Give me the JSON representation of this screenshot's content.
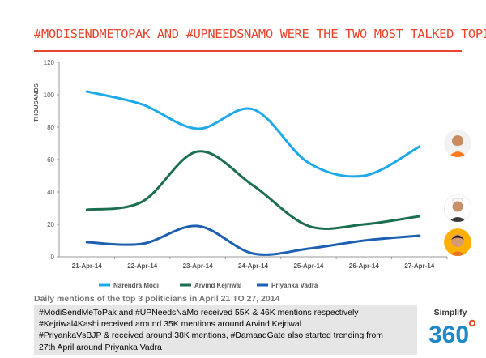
{
  "title": "#MODISENDMETOPAK AND #UPNEEDSNAMO WERE THE TWO MOST TALKED TOPICS",
  "caption": "Daily mentions of the top 3 politicians in April 21 TO 27, 2014",
  "notes": [
    "#ModiSendMeToPak and #UPNeedsNaMo received 55K & 46K mentions respectively",
    "#Kejriwal4Kashi received around 35K mentions around Arvind Kejriwal",
    "#PriyankaVsBJP & received around 38K mentions, #DamaadGate also started trending from",
    "27th April around Priyanka Vadra"
  ],
  "logo": {
    "text": "Simplify",
    "number": "360"
  },
  "colors": {
    "title": "#e8452c",
    "modi": "#1ea9e8",
    "kejriwal": "#1b6e4f",
    "vadra": "#1d5fb0"
  },
  "avatars": [
    "modi-photo",
    "kejriwal-photo",
    "vadra-photo"
  ],
  "chart_data": {
    "type": "line",
    "ylabel": "THOUSANDS",
    "ylim": [
      0,
      120
    ],
    "yticks": [
      0,
      20,
      40,
      60,
      80,
      100,
      120
    ],
    "categories": [
      "21-Apr-14",
      "22-Apr-14",
      "23-Apr-14",
      "24-Apr-14",
      "25-Apr-14",
      "26-Apr-14",
      "27-Apr-14"
    ],
    "series": [
      {
        "name": "Narendra Modi",
        "values": [
          102,
          94,
          79,
          91,
          58,
          50,
          68
        ]
      },
      {
        "name": "Arvind Kejriwal",
        "values": [
          29,
          34,
          65,
          44,
          19,
          20,
          25
        ]
      },
      {
        "name": "Priyanka Vadra",
        "values": [
          9,
          8,
          19,
          2,
          5,
          10,
          13
        ]
      }
    ],
    "legend_position": "bottom",
    "grid": false
  }
}
